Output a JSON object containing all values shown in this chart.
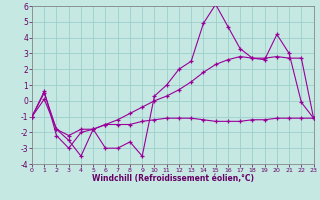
{
  "xlabel": "Windchill (Refroidissement éolien,°C)",
  "bg_color": "#c5e8e3",
  "grid_color": "#9dcfca",
  "line_color": "#990099",
  "tick_color": "#660066",
  "xlim": [
    0,
    23
  ],
  "ylim": [
    -4,
    6
  ],
  "xticks": [
    0,
    1,
    2,
    3,
    4,
    5,
    6,
    7,
    8,
    9,
    10,
    11,
    12,
    13,
    14,
    15,
    16,
    17,
    18,
    19,
    20,
    21,
    22,
    23
  ],
  "yticks": [
    -4,
    -3,
    -2,
    -1,
    0,
    1,
    2,
    3,
    4,
    5,
    6
  ],
  "line1_y": [
    -1.0,
    0.6,
    -2.2,
    -3.0,
    -2.0,
    -1.8,
    -3.0,
    -3.0,
    -2.6,
    -3.5,
    0.3,
    1.0,
    2.0,
    2.5,
    4.9,
    6.1,
    4.7,
    3.3,
    2.7,
    2.6,
    4.2,
    3.0,
    -0.1,
    -1.1
  ],
  "line2_y": [
    -1.0,
    0.5,
    -1.8,
    -2.2,
    -1.8,
    -1.8,
    -1.5,
    -1.2,
    -0.8,
    -0.4,
    0.0,
    0.3,
    0.7,
    1.2,
    1.8,
    2.3,
    2.6,
    2.8,
    2.7,
    2.7,
    2.8,
    2.7,
    2.7,
    -1.1
  ],
  "line3_y": [
    -1.0,
    0.1,
    -1.8,
    -2.5,
    -3.5,
    -1.8,
    -1.5,
    -1.5,
    -1.5,
    -1.3,
    -1.2,
    -1.1,
    -1.1,
    -1.1,
    -1.2,
    -1.3,
    -1.3,
    -1.3,
    -1.2,
    -1.2,
    -1.1,
    -1.1,
    -1.1,
    -1.1
  ]
}
